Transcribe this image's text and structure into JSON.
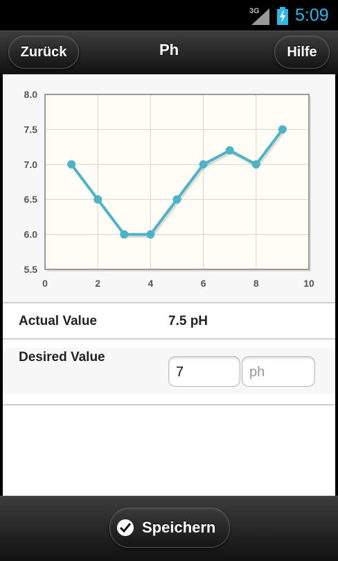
{
  "status_bar": {
    "network": "3G",
    "time": "5:09"
  },
  "header": {
    "back_label": "Zurück",
    "title": "Ph",
    "help_label": "Hilfe"
  },
  "chart_data": {
    "type": "line",
    "x": [
      1,
      2,
      3,
      4,
      5,
      6,
      7,
      8,
      9
    ],
    "series": [
      {
        "values": [
          7.0,
          6.5,
          6.0,
          6.0,
          6.5,
          7.0,
          7.2,
          7.0,
          7.5
        ],
        "color": "#4fb3c8"
      }
    ],
    "xlim": [
      0,
      10
    ],
    "ylim": [
      5.5,
      8.0
    ],
    "x_ticks": [
      0,
      2,
      4,
      6,
      8,
      10
    ],
    "y_ticks": [
      5.5,
      6.0,
      6.5,
      7.0,
      7.5,
      8.0
    ],
    "x_tick_labels": [
      "0",
      "2",
      "4",
      "6",
      "8",
      "10"
    ],
    "y_tick_labels": [
      "5.5",
      "6.0",
      "6.5",
      "7.0",
      "7.5",
      "8.0"
    ],
    "grid": true,
    "title": "",
    "xlabel": "",
    "ylabel": ""
  },
  "actual": {
    "label": "Actual Value",
    "value": "7.5 pH"
  },
  "desired": {
    "label": "Desired Value",
    "value": "7",
    "unit_placeholder": "ph"
  },
  "footer": {
    "save_label": "Speichern"
  },
  "colors": {
    "accent": "#33b5e5",
    "series": "#4fb3c8",
    "plot_bg": "#fffdf5"
  }
}
